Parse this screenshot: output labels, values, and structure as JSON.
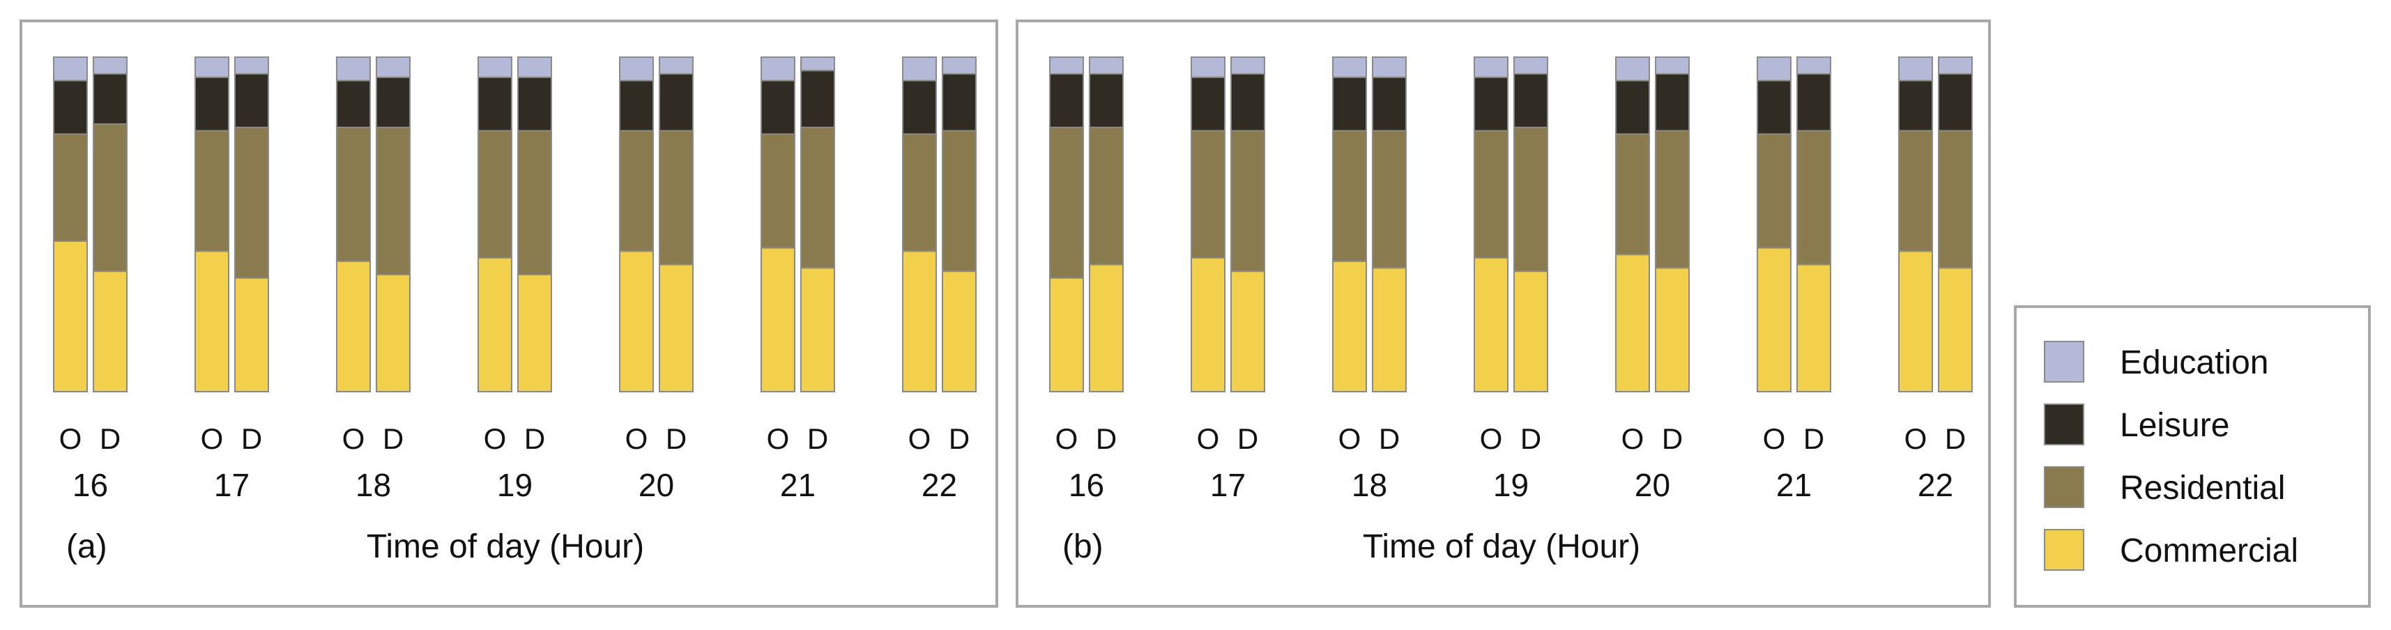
{
  "categories_legend": [
    "Education",
    "Leisure",
    "Residential",
    "Commercial"
  ],
  "colors": {
    "Education": "#b4b9d8",
    "Leisure": "#302c24",
    "Residential": "#8a7b4e",
    "Commercial": "#f2d04b",
    "bar_border": "#8a8a8a",
    "panel_border": "#a8a8a8"
  },
  "chart_data": [
    {
      "type": "bar",
      "stacked": true,
      "panel_label": "(a)",
      "xlabel": "Time of day (Hour)",
      "ylim": [
        0,
        1
      ],
      "categories": [
        "16",
        "17",
        "18",
        "19",
        "20",
        "21",
        "22"
      ],
      "bar_labels": [
        "O",
        "D"
      ],
      "series": [
        {
          "name": "Commercial",
          "O": [
            0.45,
            0.42,
            0.39,
            0.4,
            0.42,
            0.43,
            0.42
          ],
          "D": [
            0.36,
            0.34,
            0.35,
            0.35,
            0.38,
            0.37,
            0.36
          ]
        },
        {
          "name": "Residential",
          "O": [
            0.32,
            0.36,
            0.4,
            0.38,
            0.36,
            0.34,
            0.35
          ],
          "D": [
            0.44,
            0.45,
            0.44,
            0.43,
            0.4,
            0.42,
            0.42
          ]
        },
        {
          "name": "Leisure",
          "O": [
            0.16,
            0.16,
            0.14,
            0.16,
            0.15,
            0.16,
            0.16
          ],
          "D": [
            0.15,
            0.16,
            0.15,
            0.16,
            0.17,
            0.17,
            0.17
          ]
        },
        {
          "name": "Education",
          "O": [
            0.07,
            0.06,
            0.07,
            0.06,
            0.07,
            0.07,
            0.07
          ],
          "D": [
            0.05,
            0.05,
            0.06,
            0.06,
            0.05,
            0.04,
            0.05
          ]
        }
      ]
    },
    {
      "type": "bar",
      "stacked": true,
      "panel_label": "(b)",
      "xlabel": "Time of day (Hour)",
      "ylim": [
        0,
        1
      ],
      "categories": [
        "16",
        "17",
        "18",
        "19",
        "20",
        "21",
        "22"
      ],
      "bar_labels": [
        "O",
        "D"
      ],
      "series": [
        {
          "name": "Commercial",
          "O": [
            0.34,
            0.4,
            0.39,
            0.4,
            0.41,
            0.43,
            0.42
          ],
          "D": [
            0.38,
            0.36,
            0.37,
            0.36,
            0.37,
            0.38,
            0.37
          ]
        },
        {
          "name": "Residential",
          "O": [
            0.45,
            0.38,
            0.39,
            0.38,
            0.36,
            0.34,
            0.36
          ],
          "D": [
            0.41,
            0.42,
            0.41,
            0.43,
            0.41,
            0.4,
            0.41
          ]
        },
        {
          "name": "Leisure",
          "O": [
            0.16,
            0.16,
            0.16,
            0.16,
            0.16,
            0.16,
            0.15
          ],
          "D": [
            0.16,
            0.17,
            0.16,
            0.16,
            0.17,
            0.17,
            0.17
          ]
        },
        {
          "name": "Education",
          "O": [
            0.05,
            0.06,
            0.06,
            0.06,
            0.07,
            0.07,
            0.07
          ],
          "D": [
            0.05,
            0.05,
            0.06,
            0.05,
            0.05,
            0.05,
            0.05
          ]
        }
      ]
    }
  ]
}
